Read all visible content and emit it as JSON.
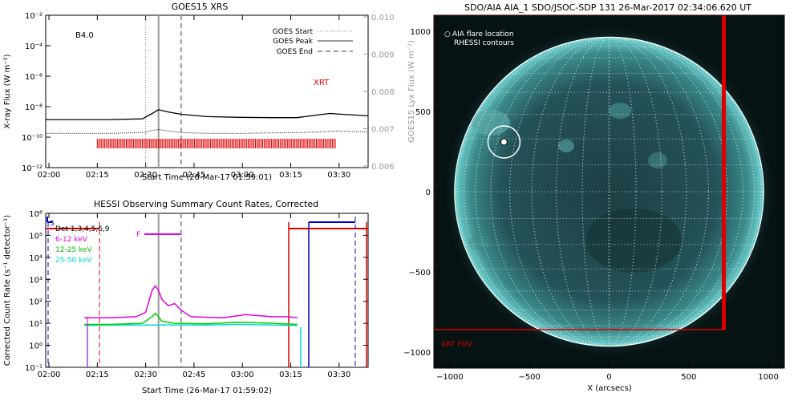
{
  "chart_data": [
    {
      "type": "line",
      "title": "GOES15 XRS",
      "xlabel": "Start Time (26-Mar-17 01:59:01)",
      "ylabel": "X-ray Flux (W m⁻²)",
      "y2label": "GOES15 Lyx Flux (W m⁻²)",
      "x_ticks": [
        "02:00",
        "02:15",
        "02:30",
        "02:45",
        "03:00",
        "03:15",
        "03:30"
      ],
      "y_ticks": [
        "10⁻¹²",
        "10⁻¹⁰",
        "10⁻⁸",
        "10⁻⁶",
        "10⁻⁴",
        "10⁻²"
      ],
      "y2_ticks": [
        "0.006",
        "0.007",
        "0.008",
        "0.009",
        "0.010"
      ],
      "ylim_log10": [
        -12,
        -2
      ],
      "xlim_minutes": [
        0,
        100
      ],
      "class_label": "B4.0",
      "legend": [
        "GOES Start",
        "GOES Peak",
        "GOES End"
      ],
      "xrt_label": "XRT",
      "flare_markers_minutes": {
        "start": 31,
        "peak": 35,
        "end": 42
      },
      "xrt_coverage_minutes": [
        16,
        90
      ],
      "series": [
        {
          "name": "",
          "x": [
            0,
            10,
            20,
            30,
            33,
            35,
            38,
            42,
            50,
            60,
            70,
            78,
            84,
            88,
            92,
            100
          ],
          "log_y": [
            -8.85,
            -8.85,
            -8.85,
            -8.8,
            -8.45,
            -8.2,
            -8.35,
            -8.5,
            -8.65,
            -8.7,
            -8.72,
            -8.72,
            -8.55,
            -8.45,
            -8.5,
            -8.6
          ]
        },
        {
          "name": "",
          "x": [
            0,
            10,
            20,
            30,
            33,
            35,
            38,
            42,
            50,
            60,
            70,
            80,
            90,
            100
          ],
          "log_y": [
            -9.75,
            -9.75,
            -9.75,
            -9.7,
            -9.55,
            -9.5,
            -9.6,
            -9.7,
            -9.75,
            -9.75,
            -9.72,
            -9.7,
            -9.6,
            -9.65
          ]
        }
      ]
    },
    {
      "type": "line",
      "title": "HESSI Observing Summary Count Rates, Corrected",
      "xlabel": "Start Time (26-Mar-17 01:59:02)",
      "ylabel": "Corrected Count Rate (s⁻¹ detector⁻¹)",
      "x_ticks": [
        "02:00",
        "02:15",
        "02:30",
        "02:45",
        "03:00",
        "03:15",
        "03:30"
      ],
      "y_ticks": [
        "10⁻¹",
        "10⁰",
        "10¹",
        "10²",
        "10³",
        "10⁴",
        "10⁵",
        "10⁶"
      ],
      "ylim_log10": [
        -1,
        6
      ],
      "xlim_minutes": [
        0,
        100
      ],
      "det_label": "Det 1,3,4,5,6,9",
      "s_label": "S",
      "f_label": "F",
      "series": [
        {
          "name": "6-12 keV",
          "color": "#e000e0",
          "x": [
            12,
            20,
            28,
            31,
            33,
            34,
            35,
            36,
            38,
            40,
            42,
            45,
            55,
            62,
            70,
            75,
            78
          ],
          "log_y": [
            1.25,
            1.25,
            1.3,
            1.5,
            2.5,
            2.7,
            2.5,
            2.1,
            1.8,
            1.9,
            1.6,
            1.3,
            1.25,
            1.4,
            1.3,
            1.3,
            1.25
          ]
        },
        {
          "name": "12-25 keV",
          "color": "#00d000",
          "x": [
            12,
            20,
            30,
            33,
            34,
            35,
            36,
            40,
            50,
            60,
            70,
            78
          ],
          "log_y": [
            0.95,
            0.95,
            1.0,
            1.3,
            1.45,
            1.3,
            1.1,
            1.0,
            0.98,
            1.05,
            1.0,
            0.95
          ]
        },
        {
          "name": "25-50 keV",
          "color": "#00d8d8",
          "x": [
            12,
            20,
            30,
            40,
            50,
            60,
            70,
            78
          ],
          "log_y": [
            0.9,
            0.92,
            0.92,
            0.93,
            0.92,
            0.95,
            0.92,
            0.9
          ]
        }
      ]
    },
    {
      "type": "scatter",
      "title": "SDO/AIA AIA_1 SDO/JSOC-SDP 131 26-Mar-2017 02:34:06.620 UT",
      "xlabel": "X (arcsecs)",
      "ylabel": "",
      "x_ticks": [
        "−1000",
        "−500",
        "0",
        "500",
        "1000"
      ],
      "y_ticks": [
        "−1000",
        "−500",
        "0",
        "500",
        "1000"
      ],
      "xlim": [
        -1100,
        1100
      ],
      "ylim": [
        -1100,
        1100
      ],
      "legend": [
        "AIA flare location",
        "RHESSI contours"
      ],
      "xrt_fov_label": "XRT FOV",
      "xrt_fov": {
        "x": [
          -1100,
          720
        ],
        "y": [
          -860,
          1100
        ]
      },
      "disk_radius": 970,
      "flare_location": [
        -660,
        310
      ]
    }
  ]
}
